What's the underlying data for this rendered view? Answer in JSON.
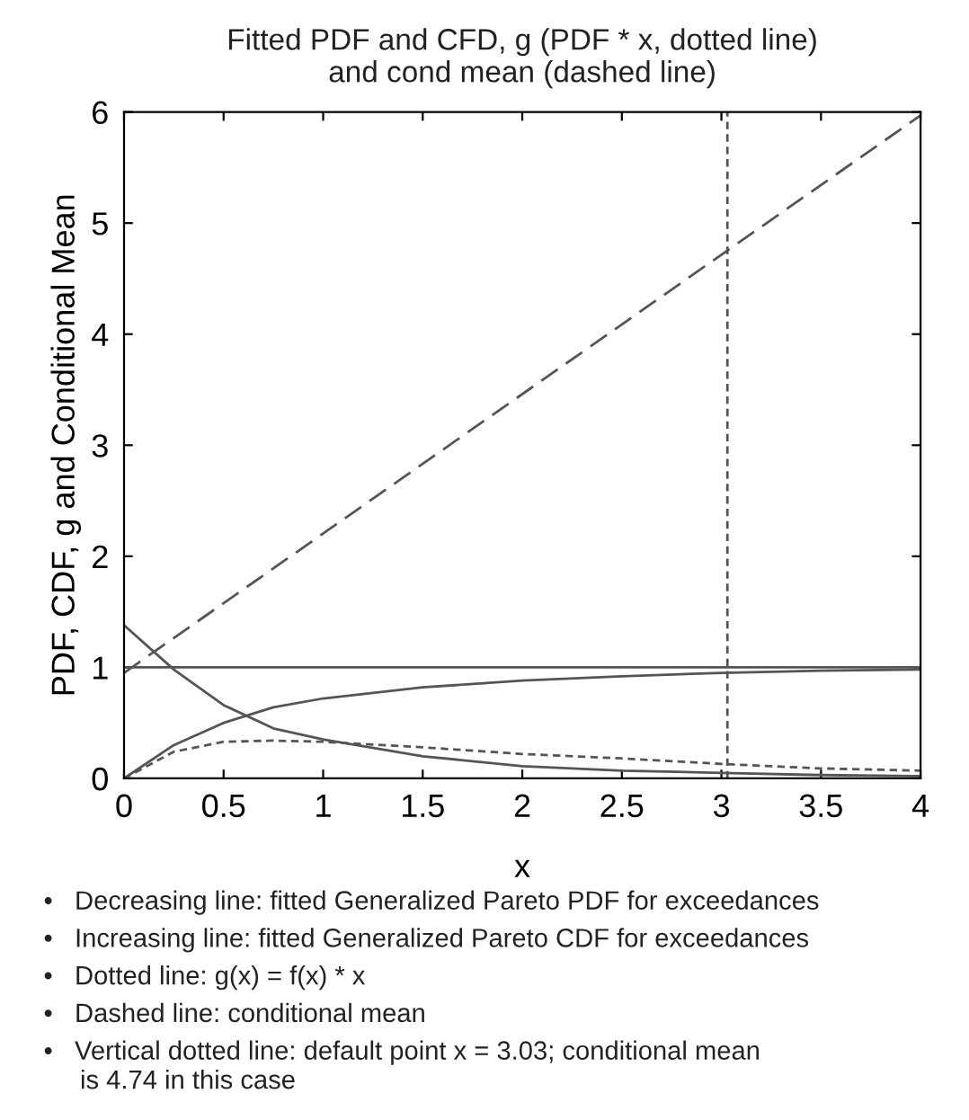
{
  "chart_data": {
    "type": "line",
    "title": "Fitted PDF and CFD, g (PDF * x, dotted line)\nand cond mean (dashed line)",
    "xlabel": "x",
    "ylabel": "PDF, CDF, g and Conditional Mean",
    "x": [
      0,
      0.25,
      0.5,
      0.75,
      1,
      1.5,
      2,
      2.5,
      3,
      3.5,
      4
    ],
    "series": [
      {
        "color": "#555555",
        "line_style": "solid",
        "values": [
          1.38,
          0.98,
          0.66,
          0.45,
          0.35,
          0.2,
          0.11,
          0.07,
          0.05,
          0.03,
          0.02
        ]
      },
      {
        "color": "#555555",
        "line_style": "solid",
        "values": [
          0,
          0.3,
          0.5,
          0.64,
          0.72,
          0.82,
          0.88,
          0.92,
          0.95,
          0.97,
          0.98
        ]
      },
      {
        "color": "#555555",
        "line_style": "dotted",
        "values": [
          0,
          0.24,
          0.33,
          0.34,
          0.33,
          0.28,
          0.22,
          0.18,
          0.13,
          0.09,
          0.07
        ]
      },
      {
        "color": "#555555",
        "line_style": "dashed",
        "x": [
          0,
          4
        ],
        "values": [
          0.95,
          5.97
        ]
      }
    ],
    "ref_lines": [
      {
        "axis": "y",
        "value": 1,
        "color": "#555555",
        "line_style": "solid"
      },
      {
        "axis": "x",
        "value": 3.03,
        "color": "#555555",
        "line_style": "dotted"
      }
    ],
    "xlim": [
      0,
      4
    ],
    "ylim": [
      0,
      6
    ],
    "xticks": [
      0,
      0.5,
      1,
      1.5,
      2,
      2.5,
      3,
      3.5,
      4
    ],
    "yticks": [
      0,
      1,
      2,
      3,
      4,
      5,
      6
    ],
    "grid": false,
    "marker": "none",
    "annotations": [
      "•   Decreasing line: fitted Generalized Pareto PDF for exceedances",
      "•   Increasing line: fitted Generalized Pareto CDF for exceedances",
      "•   Dotted line: g(x) = f(x) * x",
      "•   Dashed line: conditional mean",
      "•   Vertical dotted line: default point x = 3.03; conditional mean\n     is 4.74 in this case"
    ]
  }
}
